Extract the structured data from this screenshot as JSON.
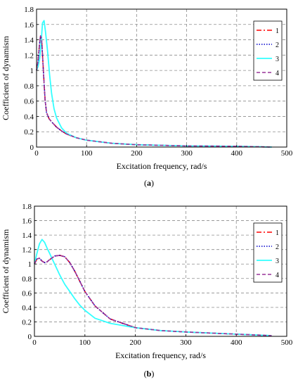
{
  "chart_data": [
    {
      "type": "line",
      "panel_label": "a",
      "xlabel": "Excitation frequency, rad/s",
      "ylabel": "Coefficient of dynamism",
      "xlim": [
        0,
        500
      ],
      "ylim": [
        0,
        1.8
      ],
      "x_ticks": [
        0,
        100,
        200,
        300,
        400,
        500
      ],
      "y_ticks": [
        0,
        0.2,
        0.4,
        0.6,
        0.8,
        1,
        1.2,
        1.4,
        1.6,
        1.8
      ],
      "grid": true,
      "legend_position": "right",
      "series": [
        {
          "name": "1",
          "color": "#ff0000",
          "dash": "dashdot",
          "x": [
            0,
            3,
            6,
            8,
            10,
            12,
            14,
            17,
            20,
            25,
            30,
            40,
            50,
            60,
            80,
            100,
            150,
            200,
            300,
            400,
            470
          ],
          "y": [
            1.0,
            1.12,
            1.35,
            1.45,
            1.42,
            1.2,
            0.95,
            0.62,
            0.45,
            0.37,
            0.33,
            0.26,
            0.21,
            0.17,
            0.12,
            0.09,
            0.05,
            0.03,
            0.015,
            0.01,
            0.0
          ]
        },
        {
          "name": "2",
          "color": "#0000cc",
          "dash": "dotted",
          "x": [
            0,
            3,
            6,
            8,
            10,
            12,
            14,
            17,
            20,
            25,
            30,
            40,
            50,
            60,
            80,
            100,
            150,
            200,
            300,
            400,
            470
          ],
          "y": [
            1.0,
            1.12,
            1.35,
            1.45,
            1.42,
            1.2,
            0.95,
            0.62,
            0.45,
            0.37,
            0.33,
            0.26,
            0.21,
            0.17,
            0.12,
            0.09,
            0.05,
            0.03,
            0.015,
            0.01,
            0.0
          ]
        },
        {
          "name": "3",
          "color": "#33ffff",
          "dash": "solid",
          "x": [
            0,
            3,
            6,
            9,
            12,
            15,
            18,
            22,
            26,
            30,
            35,
            40,
            50,
            60,
            80,
            100,
            150,
            200,
            300,
            400,
            470
          ],
          "y": [
            1.0,
            1.05,
            1.15,
            1.35,
            1.62,
            1.65,
            1.5,
            1.25,
            0.95,
            0.7,
            0.5,
            0.38,
            0.25,
            0.18,
            0.12,
            0.09,
            0.05,
            0.03,
            0.015,
            0.01,
            0.0
          ]
        },
        {
          "name": "4",
          "color": "#993399",
          "dash": "dashed",
          "x": [
            0,
            3,
            6,
            8,
            10,
            12,
            14,
            17,
            20,
            25,
            30,
            40,
            50,
            60,
            80,
            100,
            150,
            200,
            300,
            400,
            470
          ],
          "y": [
            1.0,
            1.12,
            1.35,
            1.45,
            1.42,
            1.2,
            0.95,
            0.62,
            0.45,
            0.37,
            0.33,
            0.26,
            0.21,
            0.17,
            0.12,
            0.09,
            0.05,
            0.03,
            0.015,
            0.01,
            0.0
          ]
        }
      ]
    },
    {
      "type": "line",
      "panel_label": "b",
      "xlabel": "Excitation frequency, rad/s",
      "ylabel": "Coefficient of dynamism",
      "xlim": [
        0,
        500
      ],
      "ylim": [
        0,
        1.8
      ],
      "x_ticks": [
        0,
        100,
        200,
        300,
        400,
        500
      ],
      "y_ticks": [
        0,
        0.2,
        0.4,
        0.6,
        0.8,
        1,
        1.2,
        1.4,
        1.6,
        1.8
      ],
      "grid": true,
      "legend_position": "right",
      "series": [
        {
          "name": "1",
          "color": "#ff0000",
          "dash": "dashdot",
          "x": [
            0,
            5,
            10,
            15,
            20,
            25,
            30,
            40,
            50,
            60,
            70,
            80,
            90,
            100,
            120,
            150,
            200,
            250,
            300,
            350,
            400,
            470
          ],
          "y": [
            1.0,
            1.07,
            1.08,
            1.04,
            1.02,
            1.03,
            1.06,
            1.11,
            1.12,
            1.1,
            1.02,
            0.9,
            0.76,
            0.62,
            0.42,
            0.24,
            0.12,
            0.08,
            0.06,
            0.045,
            0.03,
            0.01
          ]
        },
        {
          "name": "2",
          "color": "#0000cc",
          "dash": "dotted",
          "x": [
            0,
            5,
            10,
            15,
            20,
            25,
            30,
            40,
            50,
            60,
            70,
            80,
            90,
            100,
            120,
            150,
            200,
            250,
            300,
            350,
            400,
            470
          ],
          "y": [
            1.0,
            1.07,
            1.08,
            1.04,
            1.02,
            1.03,
            1.06,
            1.11,
            1.12,
            1.1,
            1.02,
            0.9,
            0.76,
            0.62,
            0.42,
            0.24,
            0.12,
            0.08,
            0.06,
            0.045,
            0.03,
            0.01
          ]
        },
        {
          "name": "3",
          "color": "#33ffff",
          "dash": "solid",
          "x": [
            0,
            5,
            10,
            15,
            20,
            25,
            30,
            40,
            50,
            60,
            70,
            80,
            90,
            100,
            120,
            150,
            200,
            250,
            300,
            350,
            400,
            470
          ],
          "y": [
            1.0,
            1.15,
            1.28,
            1.34,
            1.3,
            1.22,
            1.15,
            1.0,
            0.85,
            0.72,
            0.62,
            0.52,
            0.43,
            0.36,
            0.25,
            0.18,
            0.12,
            0.08,
            0.06,
            0.045,
            0.03,
            0.01
          ]
        },
        {
          "name": "4",
          "color": "#993399",
          "dash": "dashed",
          "x": [
            0,
            5,
            10,
            15,
            20,
            25,
            30,
            40,
            50,
            60,
            70,
            80,
            90,
            100,
            120,
            150,
            200,
            250,
            300,
            350,
            400,
            470
          ],
          "y": [
            1.0,
            1.07,
            1.08,
            1.04,
            1.02,
            1.03,
            1.06,
            1.11,
            1.12,
            1.1,
            1.02,
            0.9,
            0.76,
            0.62,
            0.42,
            0.24,
            0.12,
            0.08,
            0.06,
            0.045,
            0.03,
            0.01
          ]
        }
      ]
    }
  ]
}
